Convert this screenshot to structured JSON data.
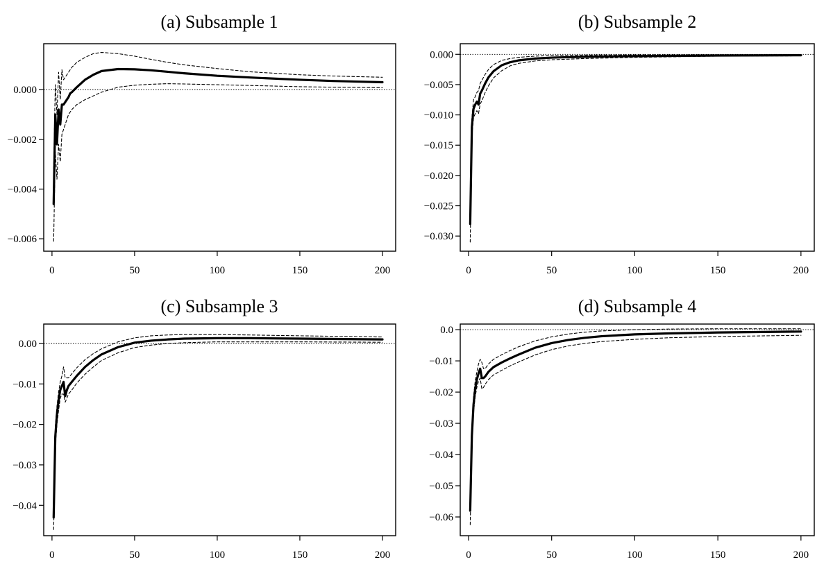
{
  "figure": {
    "background": "#ffffff",
    "line_color": "#000000"
  },
  "chart_data": [
    {
      "type": "line",
      "title": "(a) Subsample 1",
      "xlabel": "",
      "ylabel": "",
      "xlim": [
        -5,
        208
      ],
      "ylim": [
        -0.0065,
        0.00185
      ],
      "x_ticks": [
        0,
        50,
        100,
        150,
        200
      ],
      "x_tick_labels": [
        "0",
        "50",
        "100",
        "150",
        "200"
      ],
      "y_ticks": [
        -0.006,
        -0.004,
        -0.002,
        0.0
      ],
      "y_tick_labels": [
        "−0.006",
        "−0.004",
        "−0.002",
        "0.000"
      ],
      "zero_line": true,
      "grid": false,
      "x": [
        1,
        2,
        3,
        4,
        5,
        6,
        7,
        8,
        9,
        10,
        11,
        12,
        15,
        20,
        25,
        30,
        40,
        50,
        60,
        70,
        80,
        100,
        120,
        150,
        170,
        200
      ],
      "series": [
        {
          "role": "estimate",
          "style": "solid",
          "values": [
            -0.0046,
            -0.001,
            -0.0022,
            -0.0008,
            -0.0014,
            -0.0006,
            -0.0006,
            -0.0005,
            -0.0004,
            -0.0003,
            -0.00015,
            -0.0001,
            0.0001,
            0.0004,
            0.0006,
            0.00075,
            0.00083,
            0.00082,
            0.00078,
            0.00072,
            0.00066,
            0.00056,
            0.00049,
            0.0004,
            0.00035,
            0.0003
          ]
        },
        {
          "role": "upper_band",
          "style": "dashed",
          "values": [
            -0.0032,
            0.0002,
            -0.001,
            0.0007,
            -0.0004,
            0.0008,
            0.0004,
            0.0005,
            0.0006,
            0.0007,
            0.0008,
            0.0009,
            0.0011,
            0.0013,
            0.00145,
            0.0015,
            0.00145,
            0.00135,
            0.00122,
            0.0011,
            0.001,
            0.00085,
            0.00072,
            0.0006,
            0.00055,
            0.0005
          ]
        },
        {
          "role": "lower_band",
          "style": "dashed",
          "values": [
            -0.0061,
            -0.0025,
            -0.0036,
            -0.0022,
            -0.0029,
            -0.0018,
            -0.0016,
            -0.0014,
            -0.0012,
            -0.001,
            -0.0009,
            -0.0008,
            -0.0006,
            -0.0004,
            -0.00025,
            -0.0001,
            0.0001,
            0.00018,
            0.00022,
            0.00024,
            0.00023,
            0.0002,
            0.00017,
            0.00012,
            0.0001,
            8e-05
          ]
        }
      ]
    },
    {
      "type": "line",
      "title": "(b) Subsample 2",
      "xlabel": "",
      "ylabel": "",
      "xlim": [
        -5,
        208
      ],
      "ylim": [
        -0.0325,
        0.00175
      ],
      "x_ticks": [
        0,
        50,
        100,
        150,
        200
      ],
      "x_tick_labels": [
        "0",
        "50",
        "100",
        "150",
        "200"
      ],
      "y_ticks": [
        -0.03,
        -0.025,
        -0.02,
        -0.015,
        -0.01,
        -0.005,
        0.0
      ],
      "y_tick_labels": [
        "−0.030",
        "−0.025",
        "−0.020",
        "−0.015",
        "−0.010",
        "−0.005",
        "0.000"
      ],
      "zero_line": true,
      "grid": false,
      "x": [
        1,
        2,
        3,
        4,
        5,
        6,
        7,
        8,
        10,
        12,
        15,
        20,
        25,
        30,
        40,
        50,
        70,
        100,
        150,
        200
      ],
      "series": [
        {
          "role": "estimate",
          "style": "solid",
          "values": [
            -0.028,
            -0.012,
            -0.009,
            -0.0083,
            -0.0078,
            -0.0083,
            -0.0065,
            -0.006,
            -0.0048,
            -0.0038,
            -0.0028,
            -0.0018,
            -0.0013,
            -0.001,
            -0.0007,
            -0.00055,
            -0.0004,
            -0.0003,
            -0.0002,
            -0.00015
          ]
        },
        {
          "role": "upper_band",
          "style": "dashed",
          "values": [
            -0.0255,
            -0.0105,
            -0.0075,
            -0.007,
            -0.0063,
            -0.006,
            -0.0048,
            -0.0043,
            -0.0033,
            -0.0025,
            -0.0017,
            -0.001,
            -0.0007,
            -0.0005,
            -0.0003,
            -0.0002,
            -0.00012,
            -8e-05,
            -6e-05,
            -5e-05
          ]
        },
        {
          "role": "lower_band",
          "style": "dashed",
          "values": [
            -0.031,
            -0.0135,
            -0.0105,
            -0.0098,
            -0.0093,
            -0.0098,
            -0.0082,
            -0.0077,
            -0.0063,
            -0.0052,
            -0.0039,
            -0.0027,
            -0.0019,
            -0.0015,
            -0.0011,
            -0.0009,
            -0.0007,
            -0.0005,
            -0.0003,
            -0.00025
          ]
        }
      ]
    },
    {
      "type": "line",
      "title": "(c) Subsample 3",
      "xlabel": "",
      "ylabel": "",
      "xlim": [
        -5,
        208
      ],
      "ylim": [
        -0.0475,
        0.0048
      ],
      "x_ticks": [
        0,
        50,
        100,
        150,
        200
      ],
      "x_tick_labels": [
        "0",
        "50",
        "100",
        "150",
        "200"
      ],
      "y_ticks": [
        -0.04,
        -0.03,
        -0.02,
        -0.01,
        0.0
      ],
      "y_tick_labels": [
        "−0.04",
        "−0.03",
        "−0.02",
        "−0.01",
        "0.00"
      ],
      "zero_line": true,
      "grid": false,
      "x": [
        1,
        2,
        3,
        4,
        5,
        6,
        7,
        8,
        9,
        10,
        12,
        15,
        20,
        25,
        30,
        40,
        50,
        60,
        70,
        80,
        100,
        120,
        150,
        200
      ],
      "series": [
        {
          "role": "estimate",
          "style": "solid",
          "values": [
            -0.043,
            -0.023,
            -0.0175,
            -0.014,
            -0.0115,
            -0.0105,
            -0.0095,
            -0.013,
            -0.0115,
            -0.0105,
            -0.0095,
            -0.008,
            -0.0058,
            -0.0041,
            -0.0027,
            -0.0009,
            0.0002,
            0.0007,
            0.001,
            0.0012,
            0.0013,
            0.0013,
            0.0012,
            0.001
          ]
        },
        {
          "role": "upper_band",
          "style": "dashed",
          "values": [
            -0.041,
            -0.0205,
            -0.0155,
            -0.012,
            -0.0095,
            -0.008,
            -0.0058,
            -0.0085,
            -0.0085,
            -0.0085,
            -0.0075,
            -0.006,
            -0.004,
            -0.0025,
            -0.0013,
            0.0004,
            0.0014,
            0.0019,
            0.0021,
            0.0022,
            0.0022,
            0.0021,
            0.0019,
            0.0016
          ]
        },
        {
          "role": "lower_band",
          "style": "dashed",
          "values": [
            -0.046,
            -0.0255,
            -0.02,
            -0.0165,
            -0.0135,
            -0.0125,
            -0.0125,
            -0.0145,
            -0.0135,
            -0.0125,
            -0.0115,
            -0.0098,
            -0.0076,
            -0.0058,
            -0.0042,
            -0.0023,
            -0.001,
            -0.0004,
            0.0,
            0.0002,
            0.0004,
            0.0004,
            0.0004,
            0.0003
          ]
        }
      ]
    },
    {
      "type": "line",
      "title": "(d) Subsample 4",
      "xlabel": "",
      "ylabel": "",
      "xlim": [
        -5,
        208
      ],
      "ylim": [
        -0.066,
        0.0018
      ],
      "x_ticks": [
        0,
        50,
        100,
        150,
        200
      ],
      "x_tick_labels": [
        "0",
        "50",
        "100",
        "150",
        "200"
      ],
      "y_ticks": [
        -0.06,
        -0.05,
        -0.04,
        -0.03,
        -0.02,
        -0.01,
        0.0
      ],
      "y_tick_labels": [
        "−0.06",
        "−0.05",
        "−0.04",
        "−0.03",
        "−0.02",
        "−0.01",
        "0.0"
      ],
      "zero_line": true,
      "grid": false,
      "x": [
        1,
        2,
        3,
        4,
        5,
        6,
        7,
        8,
        9,
        10,
        12,
        15,
        20,
        25,
        30,
        40,
        50,
        60,
        70,
        80,
        100,
        120,
        150,
        200
      ],
      "series": [
        {
          "role": "estimate",
          "style": "solid",
          "values": [
            -0.058,
            -0.034,
            -0.024,
            -0.019,
            -0.016,
            -0.014,
            -0.0125,
            -0.0155,
            -0.0155,
            -0.015,
            -0.0135,
            -0.012,
            -0.0105,
            -0.0092,
            -0.008,
            -0.0058,
            -0.0043,
            -0.0033,
            -0.0026,
            -0.0021,
            -0.0015,
            -0.0012,
            -0.0009,
            -0.0006
          ]
        },
        {
          "role": "upper_band",
          "style": "dashed",
          "values": [
            -0.055,
            -0.0315,
            -0.0215,
            -0.0165,
            -0.0135,
            -0.011,
            -0.0095,
            -0.0105,
            -0.0125,
            -0.0125,
            -0.011,
            -0.0095,
            -0.008,
            -0.0067,
            -0.0055,
            -0.0036,
            -0.0023,
            -0.0014,
            -0.0008,
            -0.0004,
            0.0,
            0.0002,
            0.0003,
            0.0003
          ]
        },
        {
          "role": "lower_band",
          "style": "dashed",
          "values": [
            -0.0625,
            -0.0365,
            -0.0265,
            -0.0215,
            -0.0185,
            -0.0165,
            -0.0155,
            -0.019,
            -0.0185,
            -0.0175,
            -0.016,
            -0.0145,
            -0.013,
            -0.0116,
            -0.0104,
            -0.0081,
            -0.0064,
            -0.0052,
            -0.0044,
            -0.0038,
            -0.0031,
            -0.0026,
            -0.0022,
            -0.0018
          ]
        }
      ]
    }
  ]
}
